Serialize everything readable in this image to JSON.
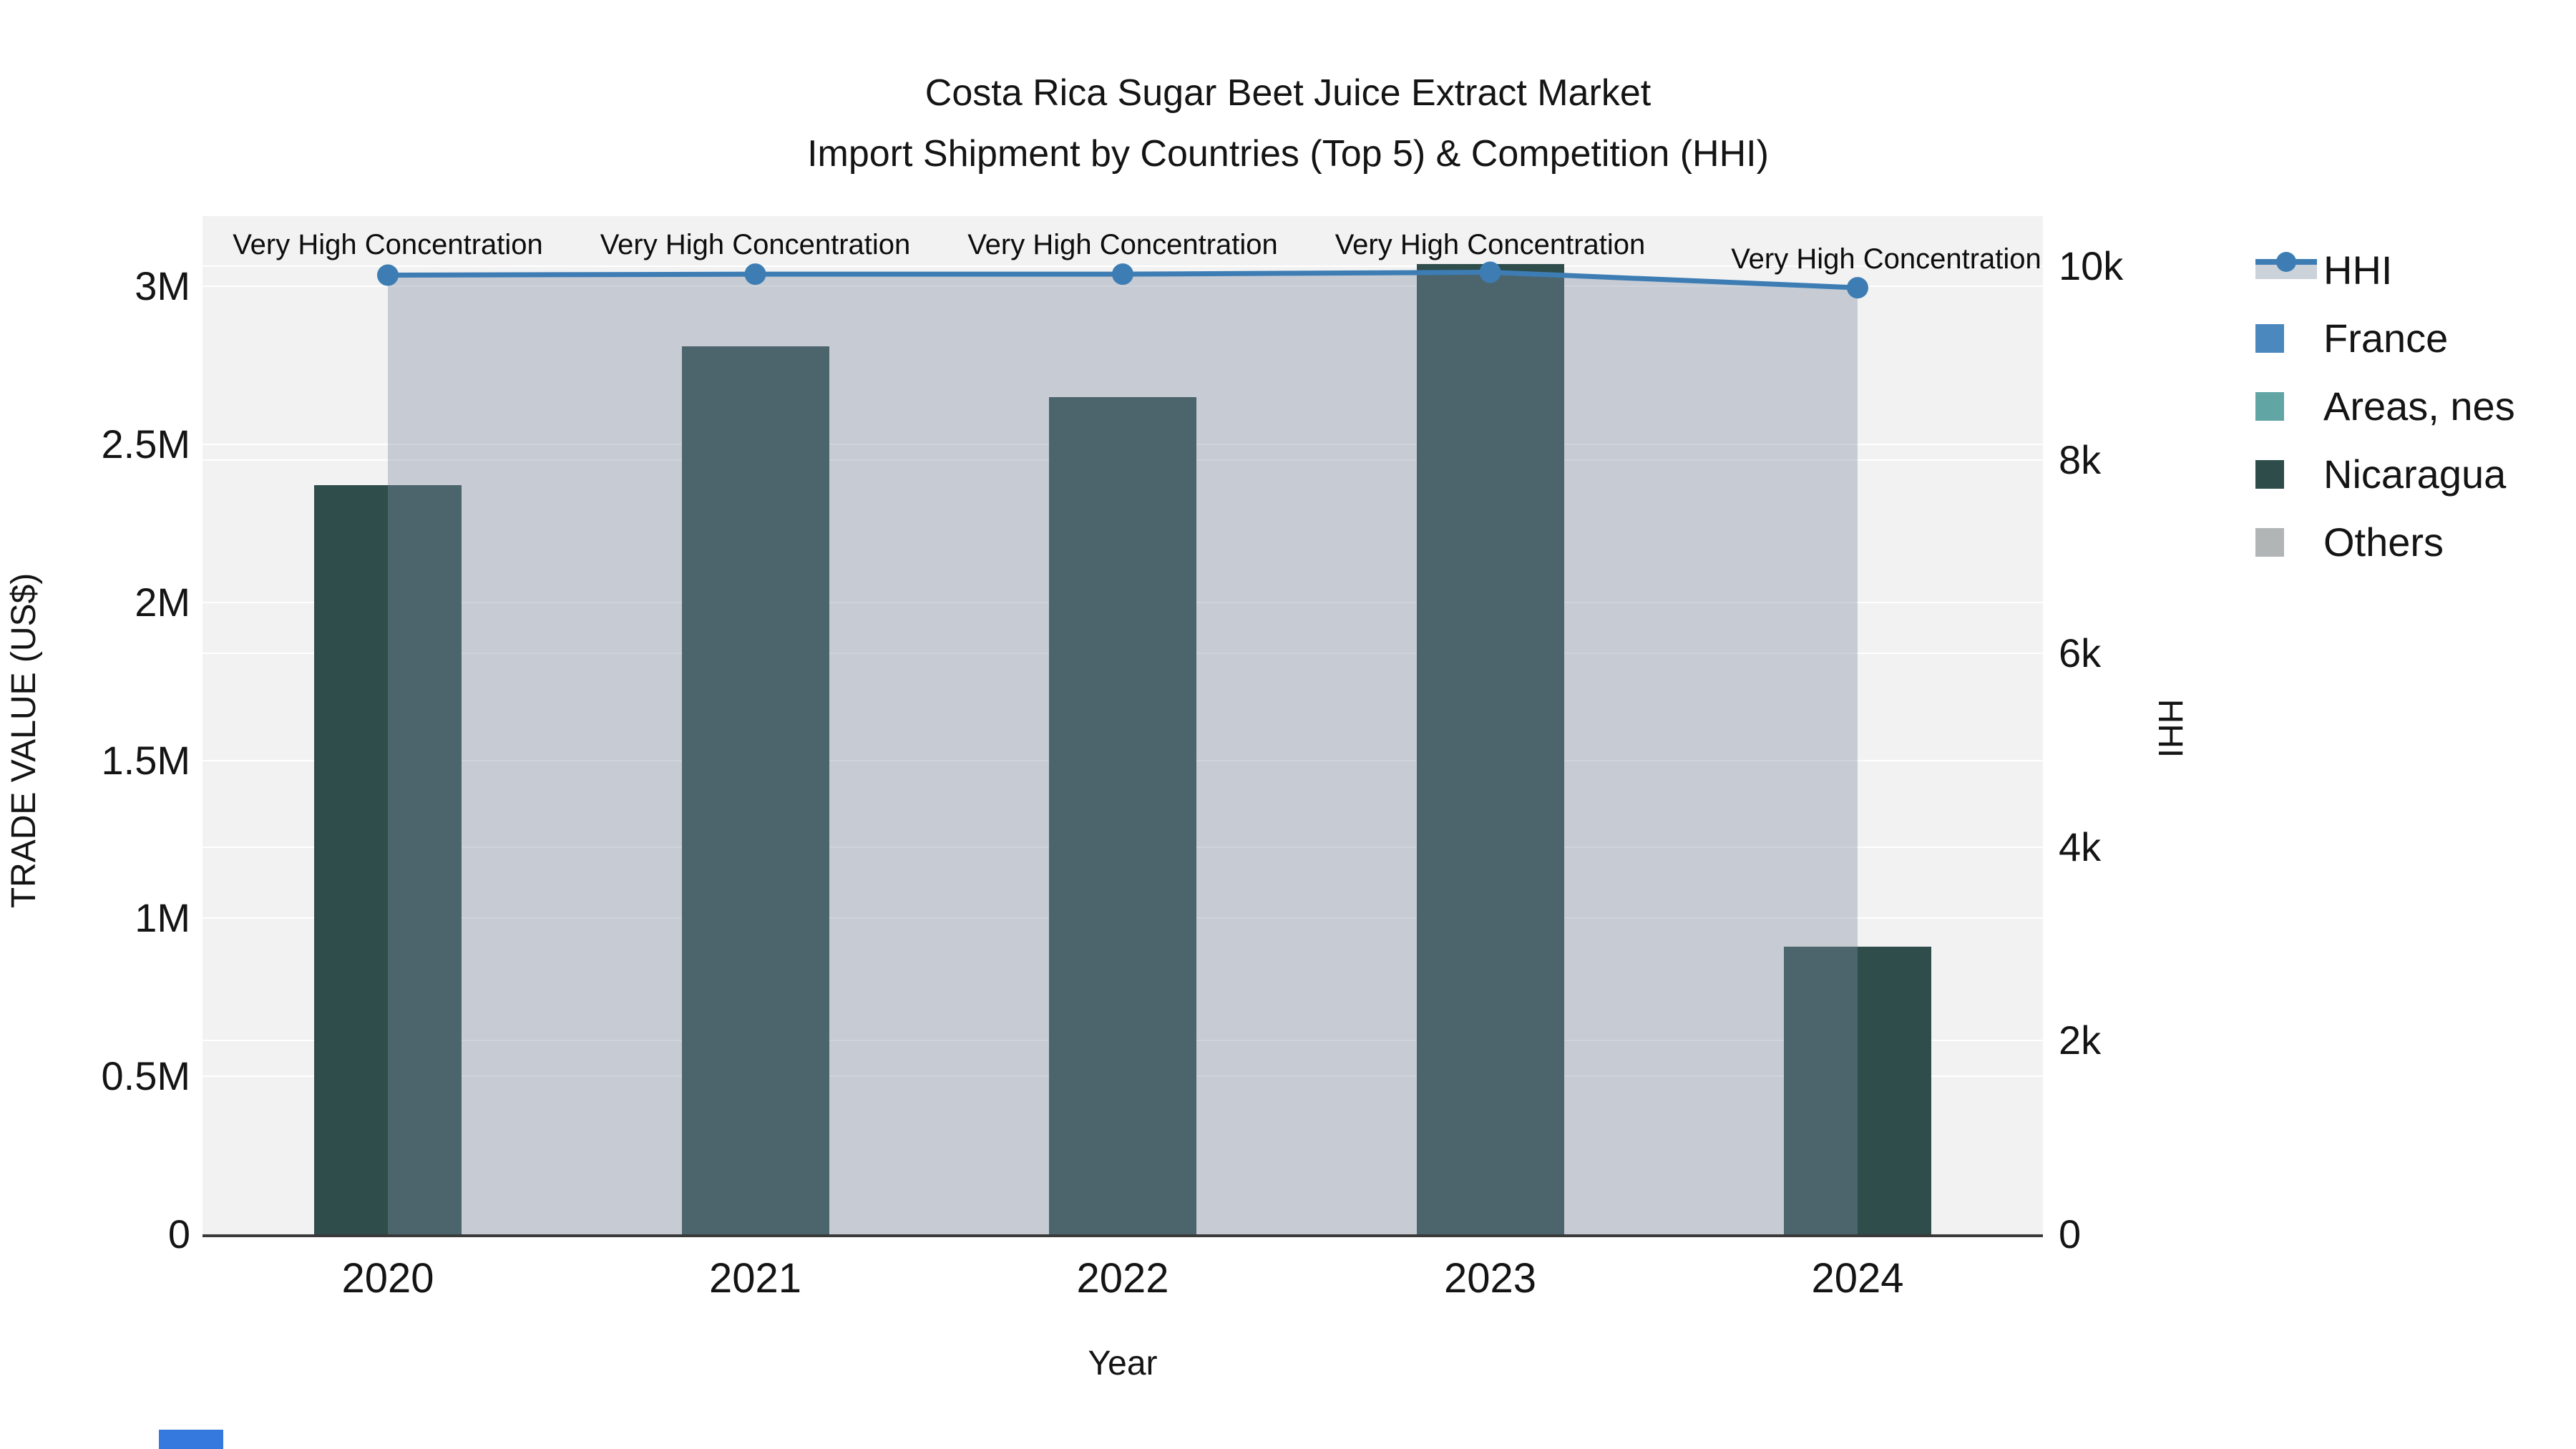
{
  "title": {
    "line1": "Costa Rica Sugar Beet Juice Extract Market",
    "line2": "Import Shipment by Countries (Top 5) & Competition (HHI)"
  },
  "axes": {
    "x": {
      "title": "Year"
    },
    "y_left": {
      "title": "TRADE VALUE (US$)",
      "ticks": [
        {
          "label": "0",
          "value": 0
        },
        {
          "label": "0.5M",
          "value": 500000
        },
        {
          "label": "1M",
          "value": 1000000
        },
        {
          "label": "1.5M",
          "value": 1500000
        },
        {
          "label": "2M",
          "value": 2000000
        },
        {
          "label": "2.5M",
          "value": 2500000
        },
        {
          "label": "3M",
          "value": 3000000
        }
      ]
    },
    "y_right": {
      "title": "HHI",
      "ticks": [
        {
          "label": "0",
          "value": 0
        },
        {
          "label": "2k",
          "value": 2000
        },
        {
          "label": "4k",
          "value": 4000
        },
        {
          "label": "6k",
          "value": 6000
        },
        {
          "label": "8k",
          "value": 8000
        },
        {
          "label": "10k",
          "value": 10000
        }
      ]
    }
  },
  "legend": {
    "items": [
      {
        "label": "HHI",
        "marker": "line",
        "color": "#3d7db4",
        "band_color": "#ccd2da"
      },
      {
        "label": "France",
        "marker": "square",
        "color": "#4a88be"
      },
      {
        "label": "Areas, nes",
        "marker": "square",
        "color": "#62a5a5"
      },
      {
        "label": "Nicaragua",
        "marker": "square",
        "color": "#2d4c4a"
      },
      {
        "label": "Others",
        "marker": "square",
        "color": "#b2b5b5"
      }
    ]
  },
  "chart_data": {
    "type": "bar+line",
    "title": "Costa Rica Sugar Beet Juice Extract Market — Import Shipment by Countries (Top 5) & Competition (HHI)",
    "categories": [
      "2020",
      "2021",
      "2022",
      "2023",
      "2024"
    ],
    "series": [
      {
        "name": "Nicaragua",
        "type": "bar",
        "yaxis": "left",
        "color": "#2e4d4b",
        "values": [
          2370000,
          2810000,
          2650000,
          3070000,
          910000
        ]
      },
      {
        "name": "HHI",
        "type": "line",
        "yaxis": "right",
        "color": "#3d7db4",
        "fill": "rgba(125,139,162,0.38)",
        "values": [
          9910,
          9920,
          9920,
          9940,
          9780
        ]
      }
    ],
    "point_annotations": [
      "Very High Concentration",
      "Very High Concentration",
      "Very High Concentration",
      "Very High Concentration",
      "Very High Concentration"
    ],
    "xlabel": "Year",
    "ylabel_left": "TRADE VALUE (US$)",
    "ylabel_right": "HHI",
    "ylim_left": [
      0,
      3222000
    ],
    "ylim_right": [
      0,
      10520
    ],
    "grid": true,
    "legend_position": "right",
    "plot_bg": "#f2f2f2",
    "grid_color": "#ffffff",
    "axis_line_color": "#3a3a3a"
  },
  "misc": {
    "clipped_blue_element_color": "#3579de"
  }
}
